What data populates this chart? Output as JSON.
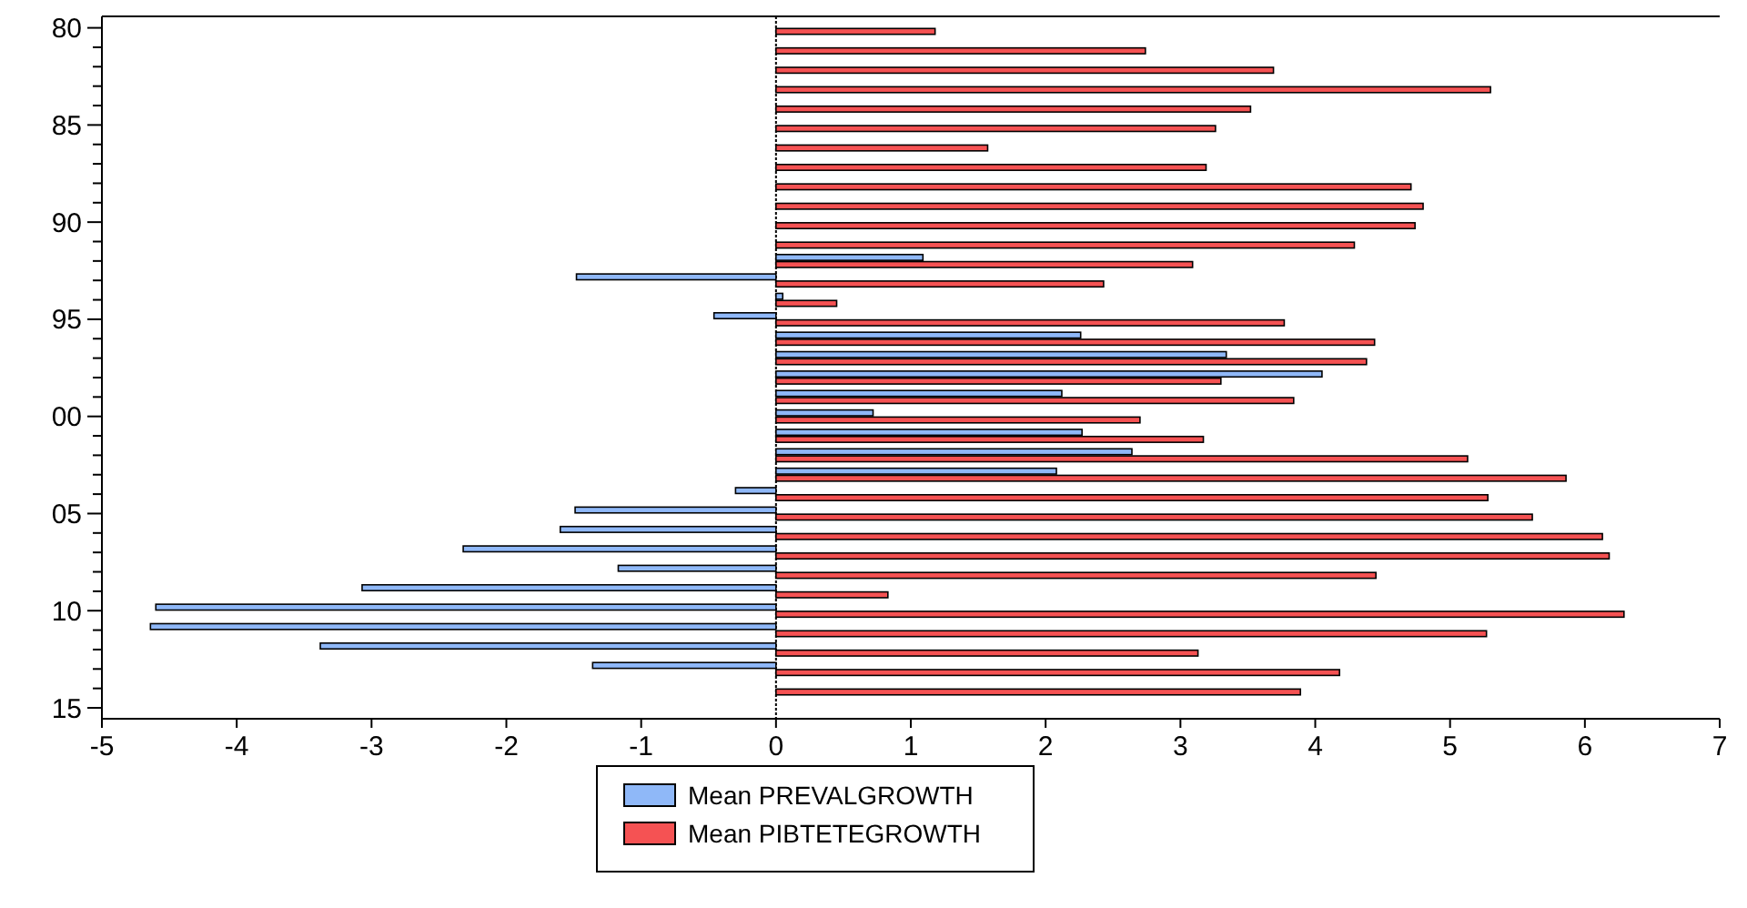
{
  "chart_data": {
    "type": "bar",
    "orientation": "horizontal",
    "categories": [
      "80",
      null,
      null,
      null,
      null,
      "85",
      null,
      null,
      null,
      null,
      "90",
      null,
      null,
      null,
      null,
      "95",
      null,
      null,
      null,
      null,
      "00",
      null,
      null,
      null,
      null,
      "05",
      null,
      null,
      null,
      null,
      "10",
      null,
      null,
      null,
      null,
      "15"
    ],
    "series": [
      {
        "name": "Mean PREVALGROWTH",
        "color": "#8fb8f8",
        "values": [
          null,
          null,
          null,
          null,
          null,
          null,
          null,
          null,
          null,
          null,
          null,
          null,
          1.09,
          -1.48,
          0.05,
          -0.46,
          2.26,
          3.34,
          4.05,
          2.12,
          0.72,
          2.27,
          2.64,
          2.08,
          -0.3,
          -1.49,
          -1.6,
          -2.32,
          -1.17,
          -3.07,
          -4.6,
          -4.64,
          -3.38,
          -1.36,
          null,
          null
        ]
      },
      {
        "name": "Mean PIBTETEGROWTH",
        "color": "#f55253",
        "values": [
          1.18,
          2.74,
          3.69,
          5.3,
          3.52,
          3.26,
          1.57,
          3.19,
          4.71,
          4.8,
          4.74,
          4.29,
          3.09,
          2.43,
          0.45,
          3.77,
          4.44,
          4.38,
          3.3,
          3.84,
          2.7,
          3.17,
          5.13,
          5.86,
          5.28,
          5.61,
          6.13,
          6.18,
          4.45,
          0.83,
          6.29,
          5.27,
          3.13,
          4.18,
          3.89,
          null
        ]
      }
    ],
    "xlim": [
      -5,
      7
    ],
    "xticks": [
      -5,
      -4,
      -3,
      -2,
      -1,
      0,
      1,
      2,
      3,
      4,
      5,
      6,
      7
    ],
    "ref_lines": [
      {
        "axis": "x",
        "value": 0
      }
    ],
    "legend": "bottom"
  }
}
